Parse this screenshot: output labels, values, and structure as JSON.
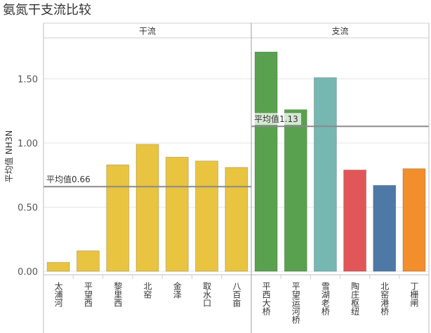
{
  "chart_data": {
    "type": "bar",
    "title": "氨氮干支流比较",
    "ylabel": "平均值 NH3N",
    "ylim": [
      0,
      1.8
    ],
    "yticks": [
      0.0,
      0.5,
      1.0,
      1.5
    ],
    "ytick_labels": [
      "0.00",
      "0.50",
      "1.00",
      "1.50"
    ],
    "grid": true,
    "panels": [
      {
        "name": "干流",
        "categories": [
          "太浦河",
          "平望西",
          "黎里西",
          "北窑",
          "金泽",
          "取水口",
          "八百亩"
        ],
        "values": [
          0.07,
          0.16,
          0.83,
          0.99,
          0.89,
          0.86,
          0.81
        ],
        "colors": [
          "#e9c440",
          "#e9c440",
          "#e9c440",
          "#e9c440",
          "#e9c440",
          "#e9c440",
          "#e9c440"
        ],
        "average": 0.66,
        "average_label": "平均值0.66"
      },
      {
        "name": "支流",
        "categories": [
          "平西大桥",
          "平望运河桥",
          "雪湖老桥",
          "陶庄枢纽",
          "北窑港桥",
          "丁栅闸"
        ],
        "values": [
          1.71,
          1.26,
          1.51,
          0.79,
          0.67,
          0.8
        ],
        "colors": [
          "#59a14f",
          "#59a14f",
          "#76b7b2",
          "#e15759",
          "#4e79a7",
          "#f28e2b"
        ],
        "average": 1.13,
        "average_label": "平均值1.13"
      }
    ]
  }
}
